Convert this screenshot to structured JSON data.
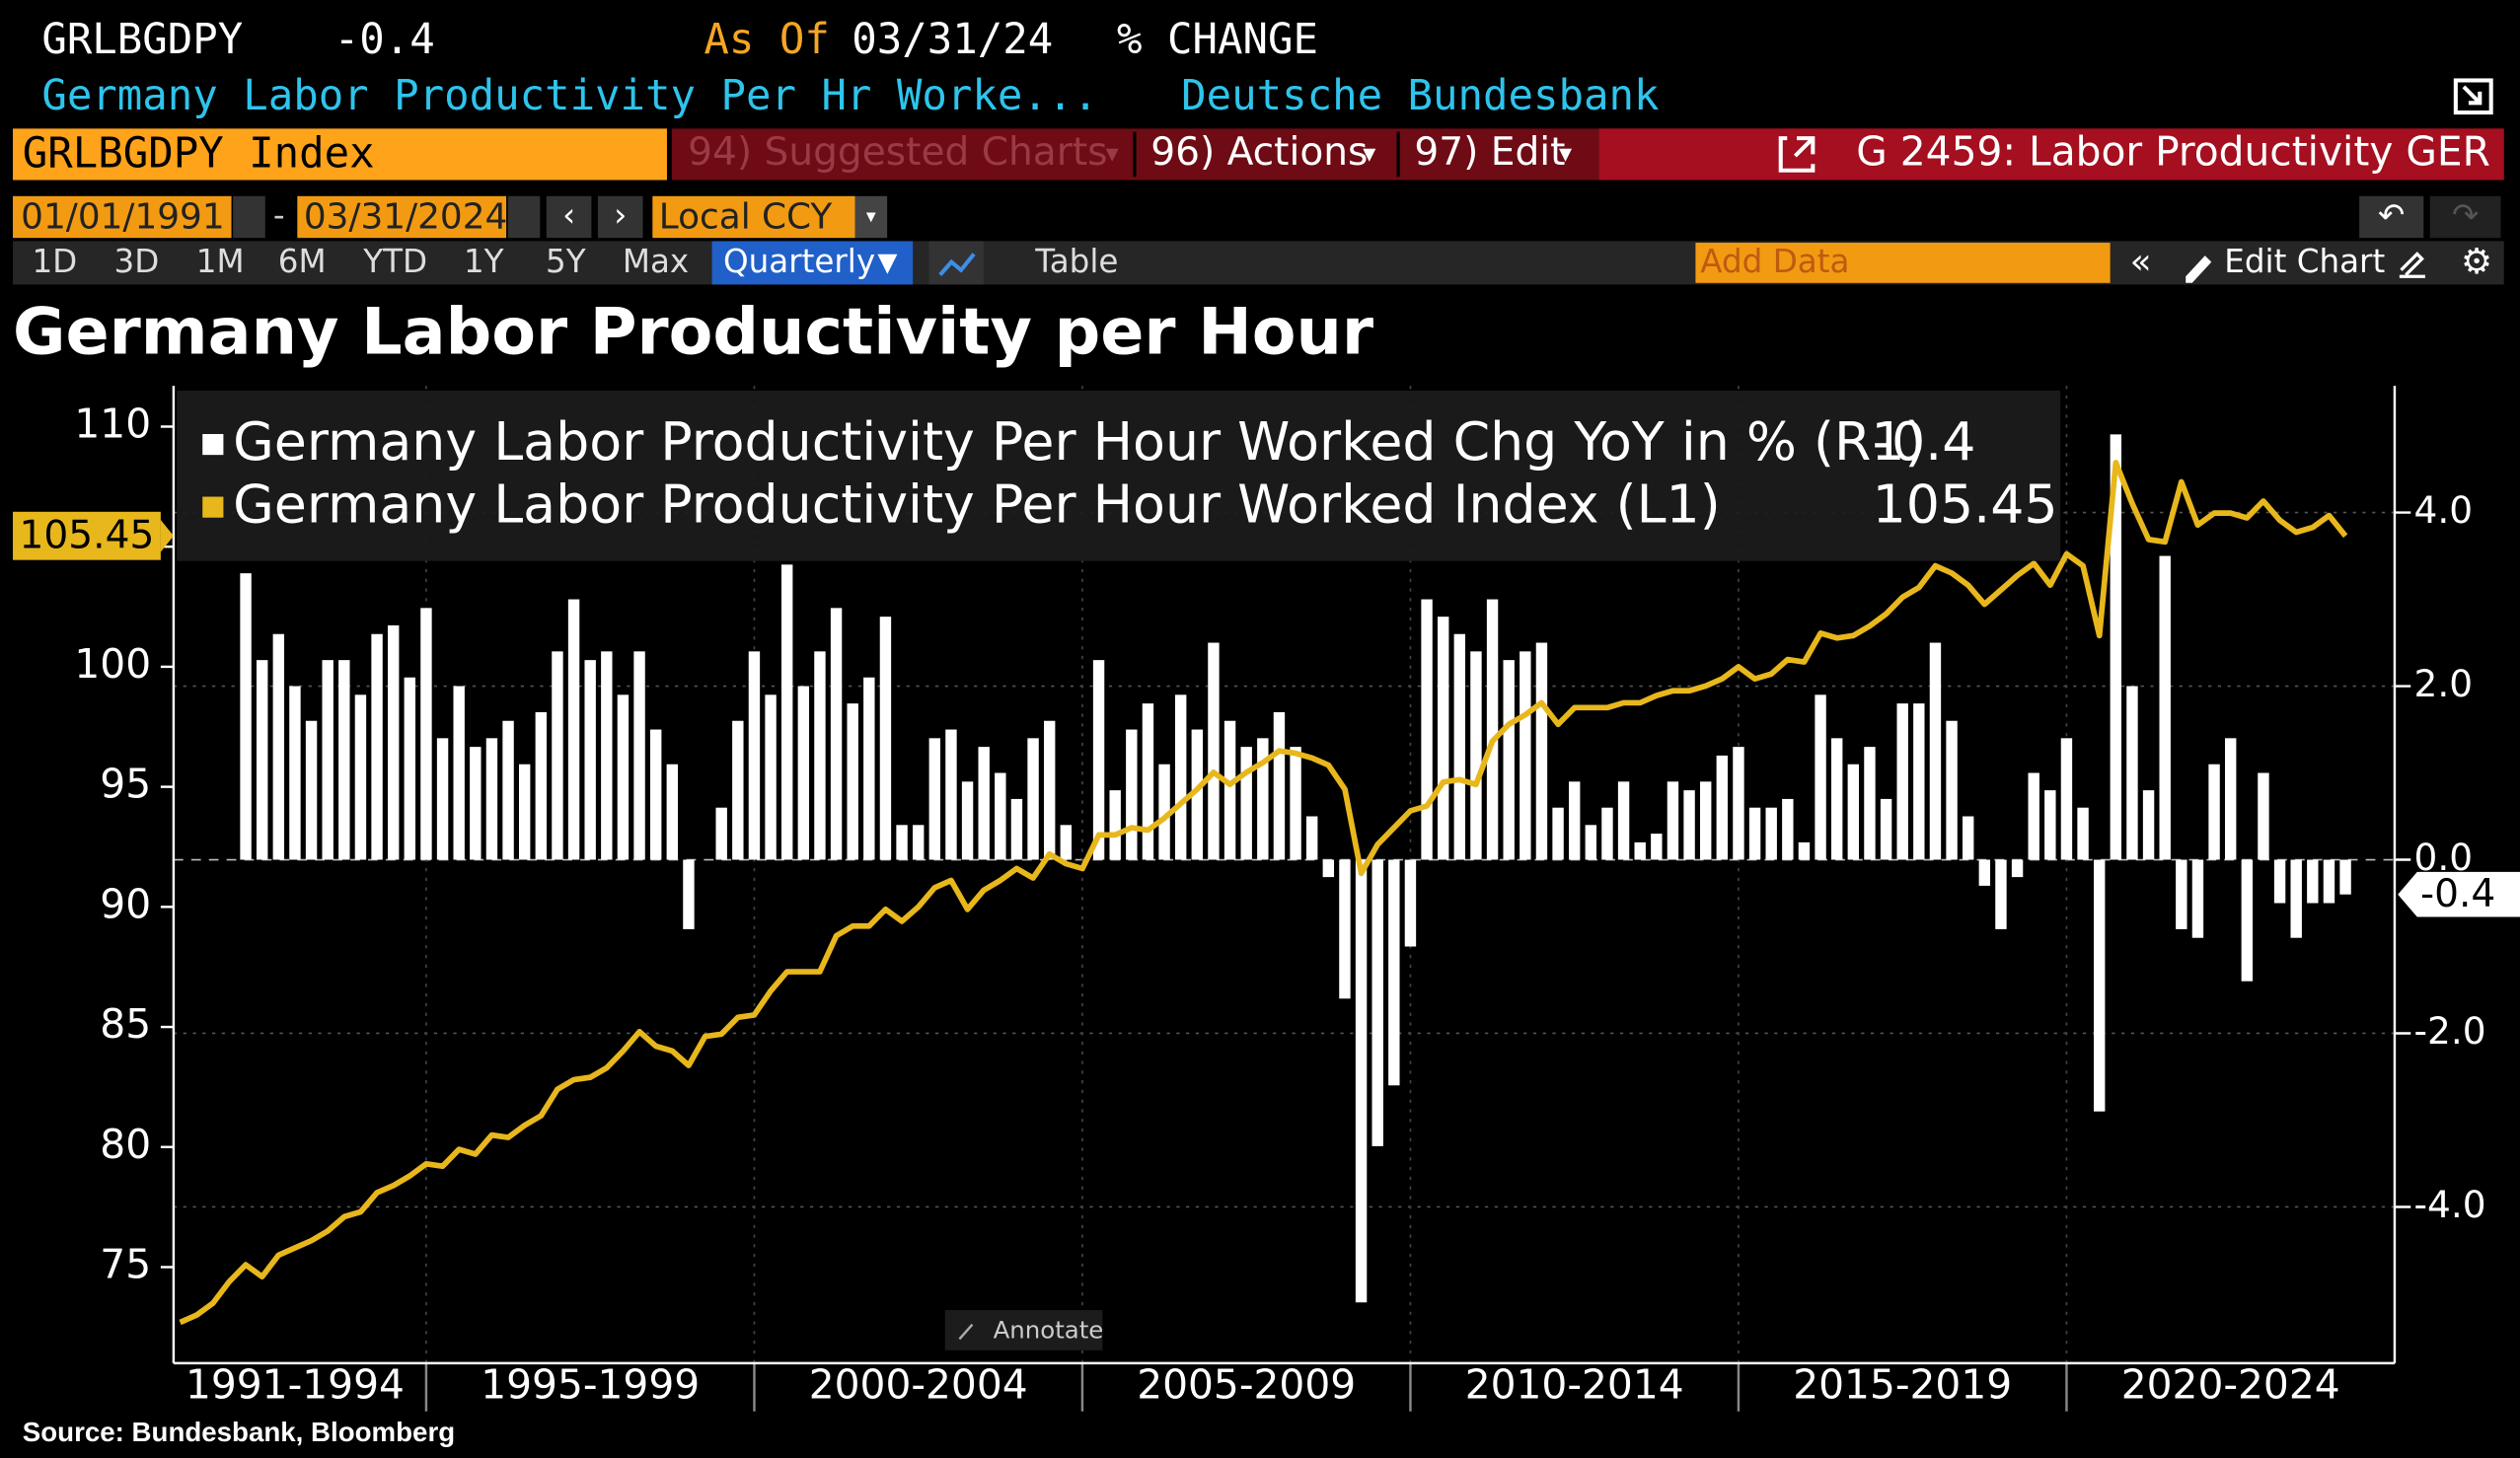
{
  "header": {
    "ticker": "GRLBGDPY",
    "last": "-0.4",
    "as_of_label": "As Of",
    "as_of": "03/31/24",
    "mode": "% CHANGE",
    "description": "Germany Labor Productivity Per Hr Worke...",
    "source_name": "Deutsche Bundesbank"
  },
  "command_bar": {
    "security": "GRLBGDPY Index",
    "menus": [
      "94) Suggested Charts",
      "96) Actions",
      "97) Edit"
    ],
    "chart_name": "G 2459: Labor Productivity GER"
  },
  "controls": {
    "start_date": "01/01/1991",
    "end_date": "03/31/2024",
    "currency": "Local CCY",
    "periods": [
      "1D",
      "3D",
      "1M",
      "6M",
      "YTD",
      "1Y",
      "5Y",
      "Max"
    ],
    "frequency": "Quarterly",
    "table": "Table",
    "add_data": "Add Data",
    "edit_chart": "Edit Chart"
  },
  "chart_data": {
    "type": "combo",
    "title": "Germany Labor Productivity per Hour",
    "x": [
      1991.25,
      1991.5,
      1991.75,
      1992,
      1992.25,
      1992.5,
      1992.75,
      1993,
      1993.25,
      1993.5,
      1993.75,
      1994,
      1994.25,
      1994.5,
      1994.75,
      1995,
      1995.25,
      1995.5,
      1995.75,
      1996,
      1996.25,
      1996.5,
      1996.75,
      1997,
      1997.25,
      1997.5,
      1997.75,
      1998,
      1998.25,
      1998.5,
      1998.75,
      1999,
      1999.25,
      1999.5,
      1999.75,
      2000,
      2000.25,
      2000.5,
      2000.75,
      2001,
      2001.25,
      2001.5,
      2001.75,
      2002,
      2002.25,
      2002.5,
      2002.75,
      2003,
      2003.25,
      2003.5,
      2003.75,
      2004,
      2004.25,
      2004.5,
      2004.75,
      2005,
      2005.25,
      2005.5,
      2005.75,
      2006,
      2006.25,
      2006.5,
      2006.75,
      2007,
      2007.25,
      2007.5,
      2007.75,
      2008,
      2008.25,
      2008.5,
      2008.75,
      2009,
      2009.25,
      2009.5,
      2009.75,
      2010,
      2010.25,
      2010.5,
      2010.75,
      2011,
      2011.25,
      2011.5,
      2011.75,
      2012,
      2012.25,
      2012.5,
      2012.75,
      2013,
      2013.25,
      2013.5,
      2013.75,
      2014,
      2014.25,
      2014.5,
      2014.75,
      2015,
      2015.25,
      2015.5,
      2015.75,
      2016,
      2016.25,
      2016.5,
      2016.75,
      2017,
      2017.25,
      2017.5,
      2017.75,
      2018,
      2018.25,
      2018.5,
      2018.75,
      2019,
      2019.25,
      2019.5,
      2019.75,
      2020,
      2020.25,
      2020.5,
      2020.75,
      2021,
      2021.25,
      2021.5,
      2021.75,
      2022,
      2022.25,
      2022.5,
      2022.75,
      2023,
      2023.25,
      2023.5,
      2023.75,
      2024,
      2024.25
    ],
    "series": [
      {
        "name": "Germany Labor Productivity Per Hour Worked Chg YoY in % (R1)",
        "type": "bar",
        "axis": "y2",
        "color": "#ffffff",
        "values": [
          null,
          null,
          null,
          null,
          3.3,
          2.3,
          2.6,
          2.0,
          1.6,
          2.3,
          2.3,
          1.9,
          2.6,
          2.7,
          2.1,
          2.9,
          1.4,
          2.0,
          1.3,
          1.4,
          1.6,
          1.1,
          1.7,
          2.4,
          3.0,
          2.3,
          2.4,
          1.9,
          2.4,
          1.5,
          1.1,
          -0.8,
          0.0,
          0.6,
          1.6,
          2.4,
          1.9,
          3.4,
          2.0,
          2.4,
          2.9,
          1.8,
          2.1,
          2.8,
          0.4,
          0.4,
          1.4,
          1.5,
          0.9,
          1.3,
          1.0,
          0.7,
          1.4,
          1.6,
          0.4,
          0.0,
          2.3,
          0.8,
          1.5,
          1.8,
          1.1,
          1.9,
          1.5,
          2.5,
          1.6,
          1.3,
          1.4,
          1.7,
          1.3,
          0.5,
          -0.2,
          -1.6,
          -5.1,
          -3.3,
          -2.6,
          -1.0,
          3.0,
          2.8,
          2.6,
          2.4,
          3.0,
          2.3,
          2.4,
          2.5,
          0.6,
          0.9,
          0.4,
          0.6,
          0.9,
          0.2,
          0.3,
          0.9,
          0.8,
          0.9,
          1.2,
          1.3,
          0.6,
          0.6,
          0.7,
          0.2,
          1.9,
          1.4,
          1.1,
          1.3,
          0.7,
          1.8,
          1.8,
          2.5,
          1.6,
          0.5,
          -0.3,
          -0.8,
          -0.2,
          1.0,
          0.8,
          1.4,
          0.6,
          -2.9,
          4.9,
          2.0,
          0.8,
          3.5,
          -0.8,
          -0.9,
          1.1,
          1.4,
          -1.4,
          1.0,
          -0.5,
          -0.9,
          -0.5,
          -0.5,
          -0.4
        ]
      },
      {
        "name": "Germany Labor Productivity Per Hour Worked Index (L1)",
        "type": "line",
        "axis": "y",
        "color": "#e8b71c",
        "values": [
          72.7,
          73.0,
          73.5,
          74.4,
          75.1,
          74.6,
          75.5,
          75.8,
          76.1,
          76.5,
          77.1,
          77.3,
          78.1,
          78.4,
          78.8,
          79.3,
          79.2,
          79.9,
          79.7,
          80.5,
          80.4,
          80.9,
          81.3,
          82.4,
          82.8,
          82.9,
          83.3,
          84.0,
          84.8,
          84.2,
          84.0,
          83.4,
          84.6,
          84.7,
          85.4,
          85.5,
          86.5,
          87.3,
          87.3,
          87.3,
          88.8,
          89.2,
          89.2,
          89.9,
          89.4,
          90.0,
          90.8,
          91.1,
          89.9,
          90.7,
          91.1,
          91.6,
          91.2,
          92.2,
          91.8,
          91.6,
          93.0,
          93.0,
          93.3,
          93.2,
          93.7,
          94.3,
          94.9,
          95.6,
          95.1,
          95.6,
          96.0,
          96.5,
          96.4,
          96.2,
          95.9,
          94.9,
          91.4,
          92.6,
          93.3,
          94.0,
          94.2,
          95.2,
          95.3,
          95.1,
          96.9,
          97.6,
          98.0,
          98.5,
          97.6,
          98.3,
          98.3,
          98.3,
          98.5,
          98.5,
          98.8,
          99.0,
          99.0,
          99.2,
          99.5,
          100.0,
          99.5,
          99.7,
          100.3,
          100.2,
          101.4,
          101.2,
          101.3,
          101.7,
          102.2,
          102.9,
          103.3,
          104.2,
          103.9,
          103.4,
          102.6,
          103.2,
          103.8,
          104.3,
          103.4,
          104.7,
          104.2,
          101.3,
          108.5,
          106.8,
          105.3,
          105.2,
          107.7,
          105.9,
          106.4,
          106.4,
          106.2,
          106.9,
          106.1,
          105.6,
          105.8,
          106.3,
          105.45
        ]
      }
    ],
    "xlim": [
      1991.15,
      2025
    ],
    "xticks": [
      {
        "value": 1993,
        "label": "1991-1994"
      },
      {
        "value": 1997.5,
        "label": "1995-1999"
      },
      {
        "value": 2002.5,
        "label": "2000-2004"
      },
      {
        "value": 2007.5,
        "label": "2005-2009"
      },
      {
        "value": 2012.5,
        "label": "2010-2014"
      },
      {
        "value": 2017.5,
        "label": "2015-2019"
      },
      {
        "value": 2022.5,
        "label": "2020-2024"
      }
    ],
    "ylim": [
      71,
      111.7
    ],
    "yticks": [
      75,
      80,
      85,
      90,
      95,
      100,
      105,
      110
    ],
    "y2lim": [
      -5.8,
      5.46
    ],
    "y2ticks": [
      {
        "value": -4,
        "label": "-4.0"
      },
      {
        "value": -2,
        "label": "-2.0"
      },
      {
        "value": 0,
        "label": "0.0"
      },
      {
        "value": 2,
        "label": "2.0"
      },
      {
        "value": 4,
        "label": "4.0"
      }
    ],
    "grid": true,
    "legend": "top-left"
  },
  "annotate": "Annotate",
  "footer": "Source: Bundesbank, Bloomberg"
}
